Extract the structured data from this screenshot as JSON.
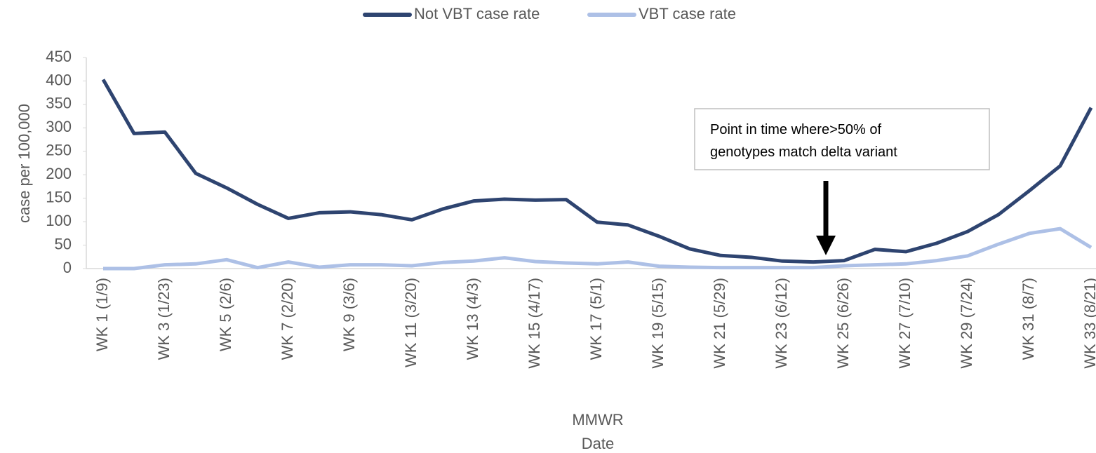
{
  "chart_data": {
    "type": "line",
    "categories": [
      "WK 1 (1/9)",
      null,
      "WK 3 (1/23)",
      null,
      "WK 5 (2/6)",
      null,
      "WK 7 (2/20)",
      null,
      "WK 9 (3/6)",
      null,
      "WK 11 (3/20)",
      null,
      "WK 13 (4/3)",
      null,
      "WK 15 (4/17)",
      null,
      "WK 17 (5/1)",
      null,
      "WK 19 (5/15)",
      null,
      "WK 21 (5/29)",
      null,
      "WK 23 (6/12)",
      null,
      "WK 25 (6/26)",
      null,
      "WK 27 (7/10)",
      null,
      "WK 29 (7/24)",
      null,
      "WK 31 (8/7)",
      null,
      "WK 33 (8/21)"
    ],
    "series": [
      {
        "name": "Not VBT case rate",
        "color": "#2e4470",
        "values": [
          403,
          288,
          291,
          203,
          172,
          137,
          107,
          119,
          121,
          115,
          104,
          127,
          144,
          148,
          146,
          147,
          99,
          93,
          69,
          42,
          28,
          24,
          16,
          14,
          17,
          41,
          36,
          54,
          79,
          115,
          166,
          219,
          343
        ]
      },
      {
        "name": "VBT case rate",
        "color": "#adc0e6",
        "values": [
          0,
          0,
          8,
          10,
          19,
          2,
          14,
          3,
          8,
          8,
          6,
          13,
          16,
          23,
          15,
          12,
          10,
          14,
          5,
          3,
          2,
          2,
          2,
          2,
          6,
          8,
          10,
          17,
          27,
          52,
          75,
          85,
          45
        ]
      }
    ],
    "ylabel": "case per 100,000",
    "xlabel": [
      "MMWR",
      "Date"
    ],
    "annotation": [
      "Point in time where>50% of",
      "genotypes match delta variant"
    ],
    "ylim": [
      0,
      450
    ],
    "yticks": [
      0,
      50,
      100,
      150,
      200,
      250,
      300,
      350,
      400,
      450
    ],
    "grid": false,
    "legend": "top"
  }
}
